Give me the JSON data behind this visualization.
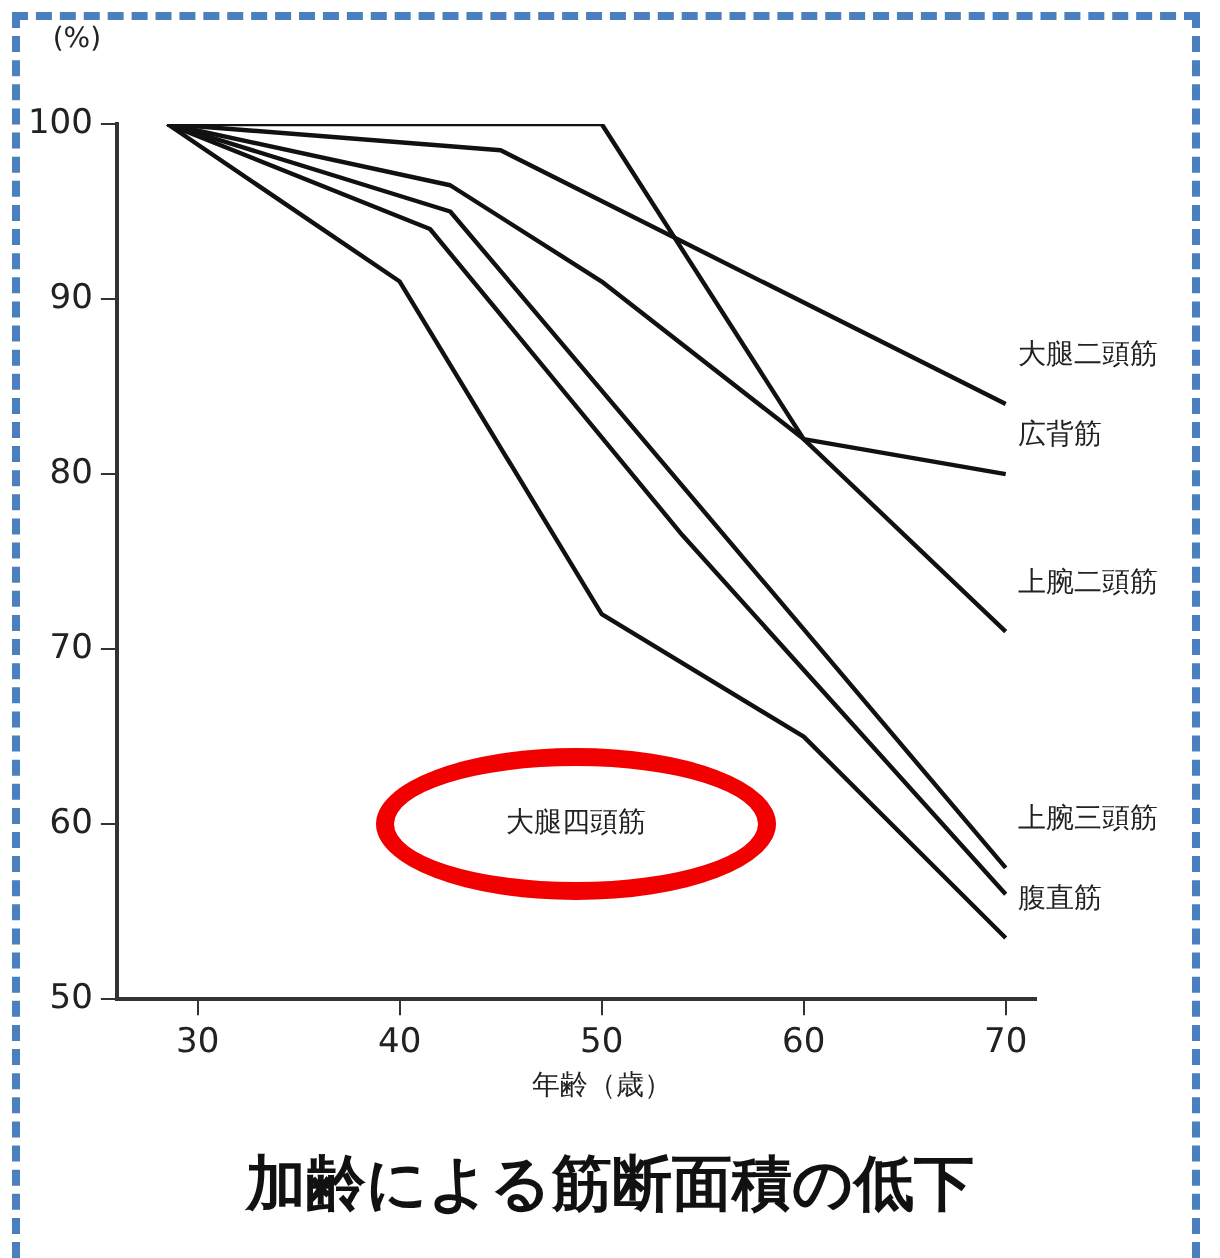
{
  "chart_data": {
    "type": "line",
    "title": "加齢による筋断面積の低下",
    "xlabel": "年齢（歳）",
    "ylabel": "(%)",
    "xlim": [
      26,
      71.5
    ],
    "xticks": [
      30,
      40,
      50,
      60,
      70
    ],
    "ylim": [
      50,
      100
    ],
    "yticks": [
      50,
      60,
      70,
      80,
      90,
      100
    ],
    "grid": false,
    "legend": false,
    "marker": "none",
    "line_style": "solid",
    "series": [
      {
        "name": "大腿二頭筋",
        "color": "#111111",
        "x": [
          28.5,
          45,
          70
        ],
        "values": [
          100,
          98.5,
          84
        ]
      },
      {
        "name": "広背筋",
        "color": "#111111",
        "x": [
          28.5,
          50,
          60,
          70
        ],
        "values": [
          100,
          100,
          82,
          80
        ]
      },
      {
        "name": "上腕二頭筋",
        "color": "#111111",
        "x": [
          28.5,
          42.5,
          50,
          60,
          70
        ],
        "values": [
          100,
          96.5,
          91,
          82,
          71
        ]
      },
      {
        "name": "上腕三頭筋",
        "color": "#111111",
        "x": [
          28.5,
          42.5,
          70
        ],
        "values": [
          100,
          95,
          57.5
        ]
      },
      {
        "name": "腹直筋",
        "color": "#111111",
        "x": [
          28.5,
          41.5,
          54,
          70
        ],
        "values": [
          100,
          94,
          76.5,
          56
        ]
      },
      {
        "color": "#111111",
        "x": [
          28.5,
          40,
          50,
          60,
          70
        ],
        "values": [
          100,
          91,
          72,
          65,
          53.5
        ]
      }
    ],
    "annotations": [
      "大腿四頭筋"
    ]
  }
}
